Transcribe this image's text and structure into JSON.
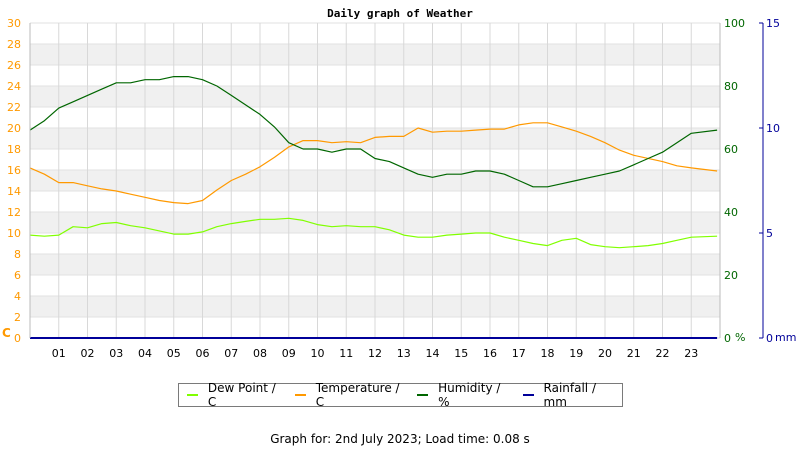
{
  "chart_data": {
    "type": "line",
    "title": "Daily graph of Weather",
    "x_ticks": [
      "01",
      "02",
      "03",
      "04",
      "05",
      "06",
      "07",
      "08",
      "09",
      "10",
      "11",
      "12",
      "13",
      "14",
      "15",
      "16",
      "17",
      "18",
      "19",
      "20",
      "21",
      "22",
      "23"
    ],
    "xlim": [
      0,
      24
    ],
    "left_axis": {
      "unit": "C",
      "ticks": [
        "0",
        "2",
        "4",
        "6",
        "8",
        "10",
        "12",
        "14",
        "16",
        "18",
        "20",
        "22",
        "24",
        "26",
        "28",
        "30"
      ],
      "ylim": [
        0,
        30
      ],
      "color": "#ff9900"
    },
    "right_axis_humidity": {
      "unit": "%",
      "ticks": [
        "0",
        "20",
        "40",
        "60",
        "80",
        "100"
      ],
      "ylim": [
        0,
        100
      ],
      "color": "#006600"
    },
    "right_axis_rain": {
      "unit": "mm",
      "ticks": [
        "0",
        "5",
        "10",
        "15"
      ],
      "ylim": [
        0,
        15
      ],
      "color": "#000099"
    },
    "grid": true,
    "series": [
      {
        "name": "Dew Point / C",
        "axis": "left",
        "color": "#80ff00",
        "x": [
          0,
          0.5,
          1,
          1.5,
          2,
          2.5,
          3,
          3.5,
          4,
          4.5,
          5,
          5.5,
          6,
          6.5,
          7,
          7.5,
          8,
          8.5,
          9,
          9.5,
          10,
          10.5,
          11,
          11.5,
          12,
          12.5,
          13,
          13.5,
          14,
          14.5,
          15,
          15.5,
          16,
          16.5,
          17,
          17.5,
          18,
          18.5,
          19,
          19.5,
          20,
          20.5,
          21,
          21.5,
          22,
          22.5,
          23,
          23.9
        ],
        "y": [
          9.8,
          9.7,
          9.8,
          10.6,
          10.5,
          10.9,
          11.0,
          10.7,
          10.5,
          10.2,
          9.9,
          9.9,
          10.1,
          10.6,
          10.9,
          11.1,
          11.3,
          11.3,
          11.4,
          11.2,
          10.8,
          10.6,
          10.7,
          10.6,
          10.6,
          10.3,
          9.8,
          9.6,
          9.6,
          9.8,
          9.9,
          10.0,
          10.0,
          9.6,
          9.3,
          9.0,
          8.8,
          9.3,
          9.5,
          8.9,
          8.7,
          8.6,
          8.7,
          8.8,
          9.0,
          9.3,
          9.6,
          9.7
        ]
      },
      {
        "name": "Temperature / C",
        "axis": "left",
        "color": "#ff9900",
        "x": [
          0,
          0.5,
          1,
          1.5,
          2,
          2.5,
          3,
          3.5,
          4,
          4.5,
          5,
          5.5,
          6,
          6.5,
          7,
          7.5,
          8,
          8.5,
          9,
          9.5,
          10,
          10.5,
          11,
          11.5,
          12,
          12.5,
          13,
          13.5,
          14,
          14.5,
          15,
          15.5,
          16,
          16.5,
          17,
          17.5,
          18,
          18.5,
          19,
          19.5,
          20,
          20.5,
          21,
          21.5,
          22,
          22.5,
          23,
          23.9
        ],
        "y": [
          16.2,
          15.6,
          14.8,
          14.8,
          14.5,
          14.2,
          14.0,
          13.7,
          13.4,
          13.1,
          12.9,
          12.8,
          13.1,
          14.1,
          15.0,
          15.6,
          16.3,
          17.2,
          18.2,
          18.8,
          18.8,
          18.6,
          18.7,
          18.6,
          19.1,
          19.2,
          19.2,
          20.0,
          19.6,
          19.7,
          19.7,
          19.8,
          19.9,
          19.9,
          20.3,
          20.5,
          20.5,
          20.1,
          19.7,
          19.2,
          18.6,
          17.9,
          17.4,
          17.1,
          16.8,
          16.4,
          16.2,
          15.9
        ]
      },
      {
        "name": "Humidity / %",
        "axis": "right_humidity",
        "color": "#006600",
        "x": [
          0,
          0.5,
          1,
          1.5,
          2,
          2.5,
          3,
          3.5,
          4,
          4.5,
          5,
          5.5,
          6,
          6.5,
          7,
          7.5,
          8,
          8.5,
          9,
          9.5,
          10,
          10.5,
          11,
          11.5,
          12,
          12.5,
          13,
          13.5,
          14,
          14.5,
          15,
          15.5,
          16,
          16.5,
          17,
          17.5,
          18,
          18.5,
          19,
          19.5,
          20,
          20.5,
          21,
          21.5,
          22,
          22.5,
          23,
          23.9
        ],
        "y": [
          66,
          69,
          73,
          75,
          77,
          79,
          81,
          81,
          82,
          82,
          83,
          83,
          82,
          80,
          77,
          74,
          71,
          67,
          62,
          60,
          60,
          59,
          60,
          60,
          57,
          56,
          54,
          52,
          51,
          52,
          52,
          53,
          53,
          52,
          50,
          48,
          48,
          49,
          50,
          51,
          52,
          53,
          55,
          57,
          59,
          62,
          65,
          66
        ]
      },
      {
        "name": "Rainfall / mm",
        "axis": "right_rain",
        "color": "#000099",
        "x": [
          0,
          23.9
        ],
        "y": [
          0,
          0
        ]
      }
    ]
  },
  "footer": {
    "text": "Graph for: 2nd July 2023; Load time: 0.08 s"
  }
}
